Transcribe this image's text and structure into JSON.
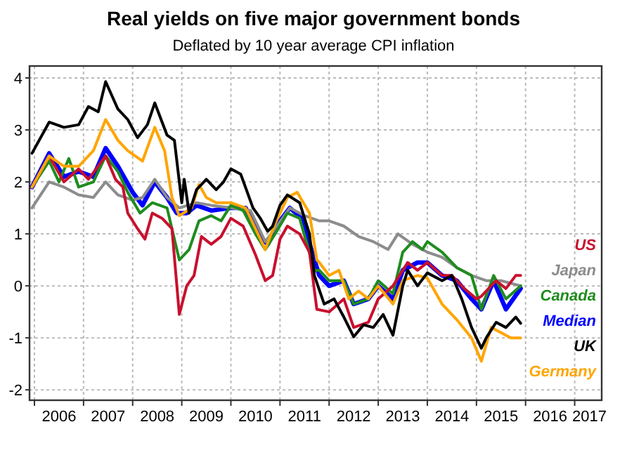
{
  "chart_data": {
    "type": "line",
    "title": "Real yields on five major government bonds",
    "subtitle": "Deflated by 10 year average CPI inflation",
    "xlim": [
      2005.9,
      2017.55
    ],
    "xticks": [
      {
        "value": 2006,
        "label": null
      },
      {
        "value": 2006.5,
        "label": "2006"
      },
      {
        "value": 2007,
        "label": null
      },
      {
        "value": 2007.5,
        "label": "2007"
      },
      {
        "value": 2008,
        "label": null
      },
      {
        "value": 2008.5,
        "label": "2008"
      },
      {
        "value": 2009,
        "label": null
      },
      {
        "value": 2009.5,
        "label": "2009"
      },
      {
        "value": 2010,
        "label": null
      },
      {
        "value": 2010.5,
        "label": "2010"
      },
      {
        "value": 2011,
        "label": null
      },
      {
        "value": 2011.5,
        "label": "2011"
      },
      {
        "value": 2012,
        "label": null
      },
      {
        "value": 2012.5,
        "label": "2012"
      },
      {
        "value": 2013,
        "label": null
      },
      {
        "value": 2013.5,
        "label": "2013"
      },
      {
        "value": 2014,
        "label": null
      },
      {
        "value": 2014.5,
        "label": "2014"
      },
      {
        "value": 2015,
        "label": null
      },
      {
        "value": 2015.5,
        "label": "2015"
      },
      {
        "value": 2016,
        "label": null
      },
      {
        "value": 2016.5,
        "label": "2016"
      },
      {
        "value": 2017,
        "label": null
      },
      {
        "value": 2017.3,
        "label": "2017"
      }
    ],
    "ylim": [
      -2.2,
      4.23
    ],
    "yticks": [
      -2,
      -1,
      0,
      1,
      2,
      3,
      4
    ],
    "grid": true,
    "legend": "right",
    "line_style": "solid",
    "marker": "none",
    "series": [
      {
        "name": "Median",
        "color": "#0000ff",
        "x": [
          2005.95,
          2006.3,
          2006.6,
          2006.9,
          2007.2,
          2007.45,
          2007.7,
          2008.0,
          2008.2,
          2008.45,
          2008.7,
          2008.9,
          2009.1,
          2009.3,
          2009.6,
          2010.0,
          2010.3,
          2010.55,
          2010.75,
          2011.0,
          2011.2,
          2011.45,
          2011.7,
          2011.8,
          2012.0,
          2012.3,
          2012.5,
          2012.8,
          2013.0,
          2013.3,
          2013.5,
          2013.8,
          2014.0,
          2014.3,
          2014.6,
          2014.9,
          2015.1,
          2015.35,
          2015.6,
          2015.9
        ],
        "values": [
          1.9,
          2.55,
          2.1,
          2.2,
          2.1,
          2.65,
          2.3,
          1.8,
          1.55,
          2.0,
          1.7,
          1.4,
          1.4,
          1.55,
          1.45,
          1.5,
          1.5,
          1.0,
          0.8,
          1.25,
          1.5,
          1.3,
          0.5,
          0.2,
          0.0,
          0.1,
          -0.35,
          -0.25,
          0.0,
          -0.25,
          0.3,
          0.45,
          0.45,
          0.2,
          0.1,
          -0.25,
          -0.45,
          0.1,
          -0.45,
          -0.05
        ]
      },
      {
        "name": "Japan",
        "color": "#8c8c8c",
        "x": [
          2005.95,
          2006.3,
          2006.6,
          2006.9,
          2007.2,
          2007.45,
          2007.7,
          2008.0,
          2008.2,
          2008.45,
          2008.7,
          2008.95,
          2009.3,
          2009.6,
          2010.0,
          2010.4,
          2010.7,
          2010.9,
          2011.2,
          2011.5,
          2011.8,
          2012.0,
          2012.3,
          2012.6,
          2012.9,
          2013.2,
          2013.4,
          2013.7,
          2014.0,
          2014.3,
          2014.6,
          2014.9,
          2015.2,
          2015.5,
          2015.9
        ],
        "values": [
          1.5,
          2.0,
          1.9,
          1.75,
          1.7,
          2.0,
          1.75,
          1.65,
          1.7,
          2.05,
          1.7,
          1.5,
          1.6,
          1.55,
          1.5,
          1.45,
          0.85,
          1.1,
          1.5,
          1.35,
          1.25,
          1.25,
          1.15,
          0.95,
          0.85,
          0.7,
          1.0,
          0.8,
          0.65,
          0.55,
          0.35,
          0.2,
          0.1,
          0.1,
          0.0
        ]
      },
      {
        "name": "Canada",
        "color": "#1e8c1e",
        "x": [
          2005.95,
          2006.3,
          2006.5,
          2006.7,
          2006.9,
          2007.2,
          2007.45,
          2007.7,
          2007.9,
          2008.15,
          2008.4,
          2008.7,
          2008.95,
          2009.15,
          2009.35,
          2009.6,
          2009.8,
          2010.0,
          2010.25,
          2010.5,
          2010.7,
          2010.9,
          2011.15,
          2011.4,
          2011.7,
          2011.8,
          2012.0,
          2012.3,
          2012.5,
          2012.8,
          2013.0,
          2013.3,
          2013.5,
          2013.7,
          2013.9,
          2014.0,
          2014.3,
          2014.6,
          2014.9,
          2015.1,
          2015.35,
          2015.6,
          2015.9
        ],
        "values": [
          1.9,
          2.4,
          2.0,
          2.45,
          1.9,
          2.0,
          2.5,
          2.2,
          1.8,
          1.4,
          1.6,
          1.5,
          0.5,
          0.7,
          1.25,
          1.35,
          1.25,
          1.55,
          1.45,
          1.0,
          0.7,
          1.0,
          1.4,
          1.3,
          0.3,
          0.3,
          0.1,
          0.1,
          -0.35,
          -0.25,
          0.1,
          -0.15,
          0.65,
          0.85,
          0.7,
          0.85,
          0.65,
          0.35,
          0.2,
          -0.45,
          0.2,
          -0.25,
          0.0
        ]
      },
      {
        "name": "US",
        "color": "#c8102e",
        "x": [
          2005.95,
          2006.3,
          2006.6,
          2006.9,
          2007.1,
          2007.45,
          2007.65,
          2007.8,
          2007.9,
          2008.1,
          2008.25,
          2008.4,
          2008.6,
          2008.8,
          2008.95,
          2009.1,
          2009.25,
          2009.4,
          2009.6,
          2009.8,
          2010.0,
          2010.25,
          2010.5,
          2010.7,
          2010.85,
          2011.0,
          2011.15,
          2011.4,
          2011.6,
          2011.75,
          2012.0,
          2012.3,
          2012.5,
          2012.8,
          2013.0,
          2013.3,
          2013.6,
          2013.8,
          2014.0,
          2014.3,
          2014.5,
          2014.75,
          2015.0,
          2015.1,
          2015.4,
          2015.6,
          2015.8,
          2015.9
        ],
        "values": [
          1.9,
          2.5,
          2.0,
          2.25,
          2.05,
          2.5,
          2.05,
          1.9,
          1.4,
          1.1,
          0.9,
          1.4,
          1.3,
          1.1,
          -0.55,
          0.0,
          0.2,
          0.95,
          0.8,
          0.95,
          1.3,
          1.15,
          0.6,
          0.1,
          0.2,
          0.9,
          1.15,
          1.0,
          0.65,
          -0.45,
          -0.5,
          -0.25,
          -0.8,
          -0.7,
          -0.25,
          0.0,
          0.45,
          0.3,
          0.45,
          0.2,
          0.2,
          -0.05,
          -0.25,
          -0.2,
          0.1,
          -0.05,
          0.2,
          0.2
        ]
      },
      {
        "name": "Germany",
        "color": "#ffa500",
        "x": [
          2005.95,
          2006.3,
          2006.6,
          2006.9,
          2007.2,
          2007.45,
          2007.7,
          2007.9,
          2008.2,
          2008.45,
          2008.65,
          2008.8,
          2008.95,
          2009.2,
          2009.35,
          2009.5,
          2009.7,
          2010.0,
          2010.3,
          2010.5,
          2010.7,
          2010.9,
          2011.15,
          2011.35,
          2011.6,
          2011.75,
          2011.8,
          2012.0,
          2012.2,
          2012.4,
          2012.6,
          2012.8,
          2013.0,
          2013.3,
          2013.5,
          2013.8,
          2014.0,
          2014.3,
          2014.6,
          2014.9,
          2015.1,
          2015.3,
          2015.5,
          2015.7,
          2015.9
        ],
        "values": [
          1.9,
          2.5,
          2.3,
          2.3,
          2.6,
          3.2,
          2.8,
          2.6,
          2.4,
          3.05,
          2.6,
          1.7,
          1.35,
          1.5,
          1.95,
          1.7,
          1.6,
          1.6,
          1.5,
          1.1,
          0.7,
          1.2,
          1.7,
          1.8,
          1.4,
          0.5,
          0.45,
          0.2,
          0.3,
          -0.25,
          -0.1,
          -0.25,
          0.0,
          -0.35,
          0.1,
          0.2,
          0.15,
          -0.35,
          -0.65,
          -1.0,
          -1.45,
          -0.8,
          -0.9,
          -1.0,
          -1.0
        ]
      },
      {
        "name": "UK",
        "color": "#000000",
        "x": [
          2005.95,
          2006.3,
          2006.6,
          2006.9,
          2007.1,
          2007.3,
          2007.45,
          2007.7,
          2007.9,
          2008.1,
          2008.3,
          2008.45,
          2008.7,
          2008.85,
          2009.0,
          2009.05,
          2009.15,
          2009.3,
          2009.5,
          2009.7,
          2009.85,
          2010.0,
          2010.2,
          2010.45,
          2010.6,
          2010.75,
          2010.85,
          2011.0,
          2011.15,
          2011.4,
          2011.6,
          2011.7,
          2011.9,
          2012.1,
          2012.3,
          2012.5,
          2012.7,
          2012.9,
          2013.1,
          2013.3,
          2013.5,
          2013.6,
          2013.8,
          2014.0,
          2014.3,
          2014.5,
          2014.7,
          2014.9,
          2015.1,
          2015.2,
          2015.4,
          2015.6,
          2015.8,
          2015.9
        ],
        "values": [
          2.55,
          3.15,
          3.05,
          3.1,
          3.45,
          3.35,
          3.93,
          3.4,
          3.2,
          2.85,
          3.1,
          3.52,
          2.9,
          2.8,
          1.6,
          2.05,
          1.4,
          1.85,
          2.05,
          1.85,
          2.0,
          2.25,
          2.15,
          1.5,
          1.3,
          1.05,
          1.15,
          1.55,
          1.75,
          1.6,
          1.0,
          0.2,
          -0.35,
          -0.25,
          -0.6,
          -0.98,
          -0.75,
          -0.8,
          -0.55,
          -0.95,
          0.0,
          0.3,
          0.0,
          0.25,
          0.1,
          0.2,
          -0.25,
          -0.8,
          -1.2,
          -1.0,
          -0.7,
          -0.8,
          -0.6,
          -0.72
        ]
      }
    ]
  }
}
